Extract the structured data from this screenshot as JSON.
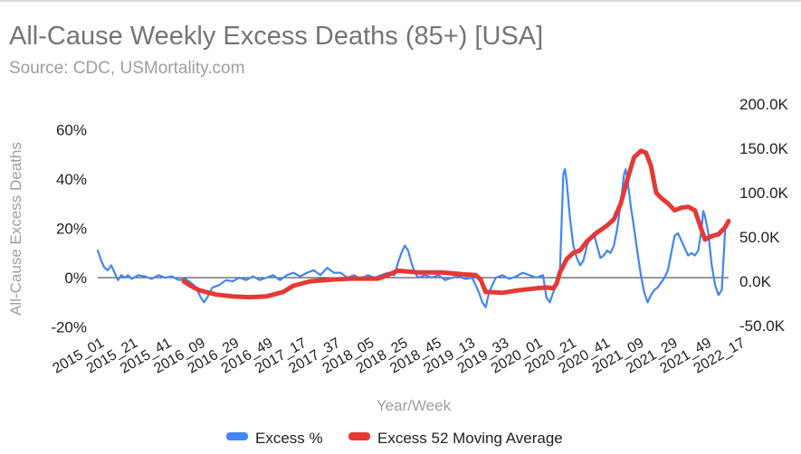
{
  "chart_data": {
    "type": "line",
    "title": "All-Cause Weekly Excess Deaths (85+) [USA]",
    "subtitle": "Source: CDC, USMortality.com",
    "xlabel": "Year/Week",
    "ylabel": "All-Cause Excess Deaths",
    "y_left": {
      "lim": [
        -0.2,
        0.6
      ],
      "ticks": [
        -0.2,
        0,
        0.2,
        0.4,
        0.6
      ],
      "tick_labels": [
        "-20%",
        "0%",
        "20%",
        "40%",
        "60%"
      ]
    },
    "y_right": {
      "lim": [
        -50000,
        200000
      ],
      "ticks": [
        -50000,
        0,
        50000,
        100000,
        150000,
        200000
      ],
      "tick_labels": [
        "-50.0K",
        "0.0K",
        "50.0K",
        "100.0K",
        "150.0K",
        "200.0K"
      ]
    },
    "x_tick_labels": [
      "2015_01",
      "2015_21",
      "2015_41",
      "2016_09",
      "2016_29",
      "2016_49",
      "2017_17",
      "2017_37",
      "2018_05",
      "2018_25",
      "2018_45",
      "2019_13",
      "2019_33",
      "2020_01",
      "2020_21",
      "2020_41",
      "2021_09",
      "2021_29",
      "2021_49",
      "2022_17"
    ],
    "legend_position": "bottom",
    "grid": false,
    "series": [
      {
        "name": "Excess %",
        "axis": "left",
        "color": "#4285f4",
        "points": [
          [
            0,
            0.11
          ],
          [
            2,
            0.07
          ],
          [
            4,
            0.04
          ],
          [
            6,
            0.03
          ],
          [
            8,
            0.05
          ],
          [
            10,
            0.02
          ],
          [
            12,
            -0.01
          ],
          [
            14,
            0.01
          ],
          [
            16,
            0.0
          ],
          [
            18,
            0.01
          ],
          [
            20,
            -0.005
          ],
          [
            24,
            0.01
          ],
          [
            28,
            0.005
          ],
          [
            32,
            -0.005
          ],
          [
            36,
            0.01
          ],
          [
            40,
            0.0
          ],
          [
            44,
            0.005
          ],
          [
            48,
            -0.01
          ],
          [
            52,
            -0.005
          ],
          [
            55,
            -0.02
          ],
          [
            57,
            -0.03
          ],
          [
            59,
            -0.05
          ],
          [
            61,
            -0.08
          ],
          [
            63,
            -0.1
          ],
          [
            65,
            -0.08
          ],
          [
            68,
            -0.04
          ],
          [
            72,
            -0.03
          ],
          [
            76,
            -0.01
          ],
          [
            80,
            -0.015
          ],
          [
            84,
            0.0
          ],
          [
            88,
            -0.01
          ],
          [
            92,
            0.005
          ],
          [
            96,
            -0.01
          ],
          [
            100,
            0.0
          ],
          [
            104,
            0.01
          ],
          [
            108,
            -0.01
          ],
          [
            112,
            0.01
          ],
          [
            116,
            0.02
          ],
          [
            120,
            0.005
          ],
          [
            124,
            0.02
          ],
          [
            128,
            0.03
          ],
          [
            132,
            0.01
          ],
          [
            136,
            0.04
          ],
          [
            140,
            0.02
          ],
          [
            144,
            0.02
          ],
          [
            148,
            0.0
          ],
          [
            152,
            0.01
          ],
          [
            156,
            -0.005
          ],
          [
            160,
            0.01
          ],
          [
            164,
            0.0
          ],
          [
            168,
            0.01
          ],
          [
            172,
            0.02
          ],
          [
            176,
            0.01
          ],
          [
            178,
            0.06
          ],
          [
            180,
            0.1
          ],
          [
            182,
            0.13
          ],
          [
            184,
            0.11
          ],
          [
            186,
            0.06
          ],
          [
            188,
            0.02
          ],
          [
            190,
            0.0
          ],
          [
            194,
            0.01
          ],
          [
            198,
            0.0
          ],
          [
            202,
            0.01
          ],
          [
            206,
            -0.01
          ],
          [
            210,
            0.0
          ],
          [
            214,
            0.005
          ],
          [
            218,
            -0.005
          ],
          [
            222,
            0.0
          ],
          [
            224,
            -0.03
          ],
          [
            226,
            -0.06
          ],
          [
            228,
            -0.1
          ],
          [
            230,
            -0.12
          ],
          [
            232,
            -0.06
          ],
          [
            234,
            -0.03
          ],
          [
            236,
            0.0
          ],
          [
            240,
            0.01
          ],
          [
            244,
            -0.005
          ],
          [
            248,
            0.005
          ],
          [
            252,
            0.02
          ],
          [
            256,
            0.01
          ],
          [
            260,
            0.0
          ],
          [
            264,
            0.01
          ],
          [
            266,
            -0.08
          ],
          [
            268,
            -0.1
          ],
          [
            270,
            -0.06
          ],
          [
            272,
            -0.03
          ],
          [
            274,
            0.02
          ],
          [
            276,
            0.42
          ],
          [
            277,
            0.44
          ],
          [
            278,
            0.39
          ],
          [
            280,
            0.24
          ],
          [
            282,
            0.13
          ],
          [
            284,
            0.08
          ],
          [
            286,
            0.05
          ],
          [
            288,
            0.07
          ],
          [
            290,
            0.13
          ],
          [
            292,
            0.16
          ],
          [
            294,
            0.18
          ],
          [
            296,
            0.13
          ],
          [
            298,
            0.08
          ],
          [
            300,
            0.09
          ],
          [
            302,
            0.11
          ],
          [
            304,
            0.1
          ],
          [
            306,
            0.13
          ],
          [
            308,
            0.2
          ],
          [
            310,
            0.3
          ],
          [
            312,
            0.42
          ],
          [
            313,
            0.44
          ],
          [
            314,
            0.4
          ],
          [
            316,
            0.29
          ],
          [
            318,
            0.2
          ],
          [
            320,
            0.1
          ],
          [
            322,
            0.01
          ],
          [
            324,
            -0.06
          ],
          [
            326,
            -0.1
          ],
          [
            328,
            -0.07
          ],
          [
            330,
            -0.05
          ],
          [
            332,
            -0.04
          ],
          [
            334,
            -0.02
          ],
          [
            336,
            0.0
          ],
          [
            338,
            0.03
          ],
          [
            340,
            0.1
          ],
          [
            342,
            0.17
          ],
          [
            344,
            0.18
          ],
          [
            346,
            0.15
          ],
          [
            348,
            0.12
          ],
          [
            350,
            0.09
          ],
          [
            352,
            0.1
          ],
          [
            354,
            0.09
          ],
          [
            356,
            0.11
          ],
          [
            358,
            0.2
          ],
          [
            359,
            0.27
          ],
          [
            360,
            0.25
          ],
          [
            362,
            0.18
          ],
          [
            364,
            0.05
          ],
          [
            366,
            -0.03
          ],
          [
            368,
            -0.07
          ],
          [
            370,
            -0.05
          ],
          [
            372,
            0.2
          ]
        ]
      },
      {
        "name": "Excess 52 Moving Average",
        "axis": "right",
        "color": "#e53935",
        "points": [
          [
            51,
            0
          ],
          [
            55,
            -5000
          ],
          [
            60,
            -10000
          ],
          [
            70,
            -15000
          ],
          [
            80,
            -17000
          ],
          [
            90,
            -18000
          ],
          [
            100,
            -17000
          ],
          [
            110,
            -12000
          ],
          [
            116,
            -5000
          ],
          [
            126,
            0
          ],
          [
            140,
            2000
          ],
          [
            150,
            3000
          ],
          [
            166,
            3000
          ],
          [
            172,
            7000
          ],
          [
            178,
            12000
          ],
          [
            190,
            10000
          ],
          [
            204,
            10000
          ],
          [
            216,
            8000
          ],
          [
            224,
            7000
          ],
          [
            227,
            2000
          ],
          [
            230,
            -12000
          ],
          [
            240,
            -13000
          ],
          [
            250,
            -10000
          ],
          [
            260,
            -8000
          ],
          [
            266,
            -7000
          ],
          [
            270,
            -8000
          ],
          [
            272,
            -3000
          ],
          [
            274,
            10000
          ],
          [
            278,
            25000
          ],
          [
            282,
            32000
          ],
          [
            286,
            35000
          ],
          [
            290,
            45000
          ],
          [
            296,
            55000
          ],
          [
            302,
            63000
          ],
          [
            306,
            70000
          ],
          [
            310,
            87000
          ],
          [
            314,
            115000
          ],
          [
            318,
            140000
          ],
          [
            322,
            147000
          ],
          [
            325,
            145000
          ],
          [
            328,
            130000
          ],
          [
            331,
            100000
          ],
          [
            334,
            94000
          ],
          [
            338,
            88000
          ],
          [
            342,
            80000
          ],
          [
            346,
            83000
          ],
          [
            350,
            84000
          ],
          [
            354,
            80000
          ],
          [
            358,
            58000
          ],
          [
            360,
            47000
          ],
          [
            364,
            51000
          ],
          [
            368,
            53000
          ],
          [
            372,
            61000
          ],
          [
            374,
            68000
          ]
        ]
      }
    ]
  }
}
